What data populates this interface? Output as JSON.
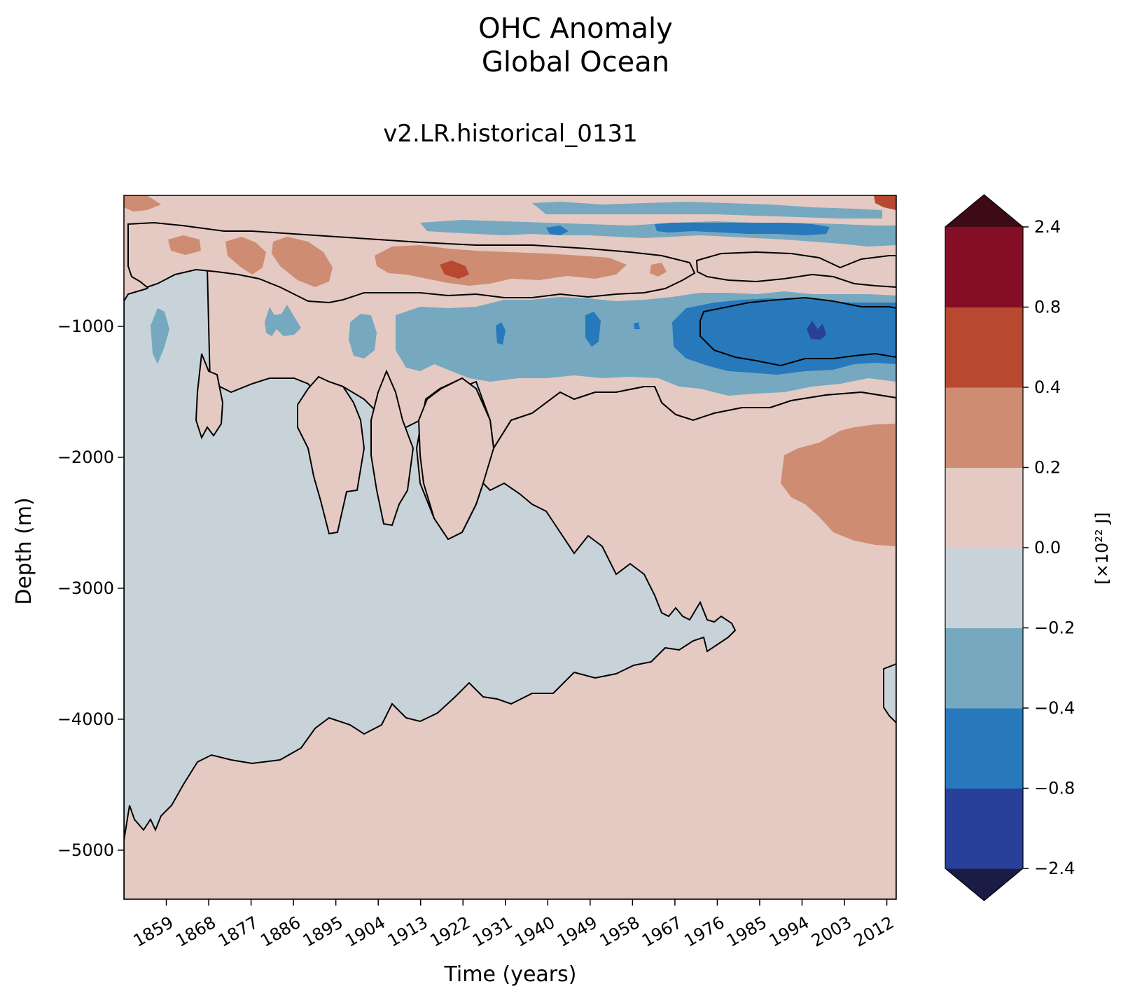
{
  "chart_data": {
    "type": "heatmap",
    "title": "OHC Anomaly",
    "subtitle": "Global Ocean",
    "panel_title": "v2.LR.historical_0131",
    "xlabel": "Time (years)",
    "ylabel": "Depth (m)",
    "x_range": [
      1850,
      2014
    ],
    "y_range": [
      -5375,
      0
    ],
    "x_ticks": [
      1859,
      1868,
      1877,
      1886,
      1895,
      1904,
      1913,
      1922,
      1931,
      1940,
      1949,
      1958,
      1967,
      1976,
      1985,
      1994,
      2003,
      2012
    ],
    "y_ticks": [
      -1000,
      -2000,
      -3000,
      -4000,
      -5000
    ],
    "colorbar": {
      "label": "[×10²² J]",
      "levels": [
        "-2.4",
        "-0.8",
        "-0.4",
        "-0.2",
        "0.0",
        "0.2",
        "0.4",
        "0.8",
        "2.4"
      ],
      "colors": [
        "#1b1c45",
        "#28409a",
        "#2879bc",
        "#76a9c0",
        "#c8d3d9",
        "#e4cac3",
        "#ce8c73",
        "#b8482f",
        "#850e27",
        "#3d0b16"
      ],
      "extend": "both"
    },
    "regions": [
      {
        "name": "deep-cool-tongue",
        "level": "-0.2 to 0.0",
        "x": [
          1851,
          1981
        ],
        "y": [
          -4780,
          -400
        ],
        "color": "#c8d3d9"
      },
      {
        "name": "upper-warm-band",
        "level": "0.0 to 0.4",
        "x": [
          1855,
          1963
        ],
        "y": [
          -850,
          -150
        ],
        "color": "#e4cac3"
      },
      {
        "name": "mid-depth-cool-band",
        "level": "-0.4 to -0.8",
        "x": [
          1906,
          2014
        ],
        "y": [
          -1450,
          -800
        ],
        "color": "#2879bc"
      },
      {
        "name": "deep-warm-recent",
        "level": "0.2 to 0.4",
        "x": [
          1986,
          2014
        ],
        "y": [
          -2700,
          -1700
        ],
        "color": "#ce8c73"
      }
    ]
  }
}
